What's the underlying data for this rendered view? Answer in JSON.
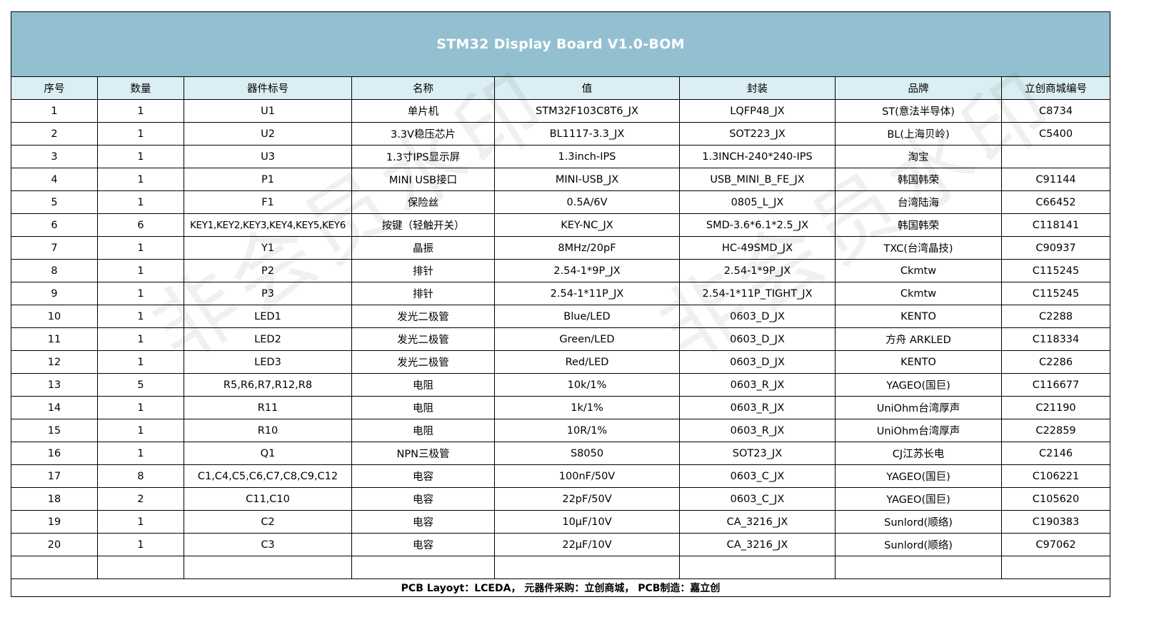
{
  "title": "STM32 Display Board V1.0-BOM",
  "columns": [
    "序号",
    "数量",
    "器件标号",
    "名称",
    "值",
    "封装",
    "品牌",
    "立创商城编号"
  ],
  "rows": [
    [
      "1",
      "1",
      "U1",
      "单片机",
      "STM32F103C8T6_JX",
      "LQFP48_JX",
      "ST(意法半导体)",
      "C8734"
    ],
    [
      "2",
      "1",
      "U2",
      "3.3V稳压芯片",
      "BL1117-3.3_JX",
      "SOT223_JX",
      "BL(上海贝岭)",
      "C5400"
    ],
    [
      "3",
      "1",
      "U3",
      "1.3寸IPS显示屏",
      "1.3inch-IPS",
      "1.3INCH-240*240-IPS",
      "淘宝",
      ""
    ],
    [
      "4",
      "1",
      "P1",
      "MINI USB接口",
      "MINI-USB_JX",
      "USB_MINI_B_FE_JX",
      "韩国韩荣",
      "C91144"
    ],
    [
      "5",
      "1",
      "F1",
      "保险丝",
      "0.5A/6V",
      "0805_L_JX",
      "台湾陆海",
      "C66452"
    ],
    [
      "6",
      "6",
      "KEY1,KEY2,KEY3,KEY4,KEY5,KEY6",
      "按键（轻触开关）",
      "KEY-NC_JX",
      "SMD-3.6*6.1*2.5_JX",
      "韩国韩荣",
      "C118141"
    ],
    [
      "7",
      "1",
      "Y1",
      "晶振",
      "8MHz/20pF",
      "HC-49SMD_JX",
      "TXC(台湾晶技)",
      "C90937"
    ],
    [
      "8",
      "1",
      "P2",
      "排针",
      "2.54-1*9P_JX",
      "2.54-1*9P_JX",
      "Ckmtw",
      "C115245"
    ],
    [
      "9",
      "1",
      "P3",
      "排针",
      "2.54-1*11P_JX",
      "2.54-1*11P_TIGHT_JX",
      "Ckmtw",
      "C115245"
    ],
    [
      "10",
      "1",
      "LED1",
      "发光二极管",
      "Blue/LED",
      "0603_D_JX",
      "KENTO",
      "C2288"
    ],
    [
      "11",
      "1",
      "LED2",
      "发光二极管",
      "Green/LED",
      "0603_D_JX",
      "方舟 ARKLED",
      "C118334"
    ],
    [
      "12",
      "1",
      "LED3",
      "发光二极管",
      "Red/LED",
      "0603_D_JX",
      "KENTO",
      "C2286"
    ],
    [
      "13",
      "5",
      "R5,R6,R7,R12,R8",
      "电阻",
      "10k/1%",
      "0603_R_JX",
      "YAGEO(国巨)",
      "C116677"
    ],
    [
      "14",
      "1",
      "R11",
      "电阻",
      "1k/1%",
      "0603_R_JX",
      "UniOhm台湾厚声",
      "C21190"
    ],
    [
      "15",
      "1",
      "R10",
      "电阻",
      "10R/1%",
      "0603_R_JX",
      "UniOhm台湾厚声",
      "C22859"
    ],
    [
      "16",
      "1",
      "Q1",
      "NPN三极管",
      "S8050",
      "SOT23_JX",
      "CJ江苏长电",
      "C2146"
    ],
    [
      "17",
      "8",
      "C1,C4,C5,C6,C7,C8,C9,C12",
      "电容",
      "100nF/50V",
      "0603_C_JX",
      "YAGEO(国巨)",
      "C106221"
    ],
    [
      "18",
      "2",
      "C11,C10",
      "电容",
      "22pF/50V",
      "0603_C_JX",
      "YAGEO(国巨)",
      "C105620"
    ],
    [
      "19",
      "1",
      "C2",
      "电容",
      "10μF/10V",
      "CA_3216_JX",
      "Sunlord(顺络)",
      "C190383"
    ],
    [
      "20",
      "1",
      "C3",
      "电容",
      "22μF/10V",
      "CA_3216_JX",
      "Sunlord(顺络)",
      "C97062"
    ],
    [
      "",
      "",
      "",
      "",
      "",
      "",
      "",
      ""
    ]
  ],
  "footer": "PCB Layoyt：LCEDA，   元器件采购：立创商城，   PCB制造：嘉立创",
  "watermark": "非会员水印",
  "colors": {
    "title_bg": "#92c0d1",
    "header_bg": "#daeef3",
    "title_text": "#ffffff"
  }
}
